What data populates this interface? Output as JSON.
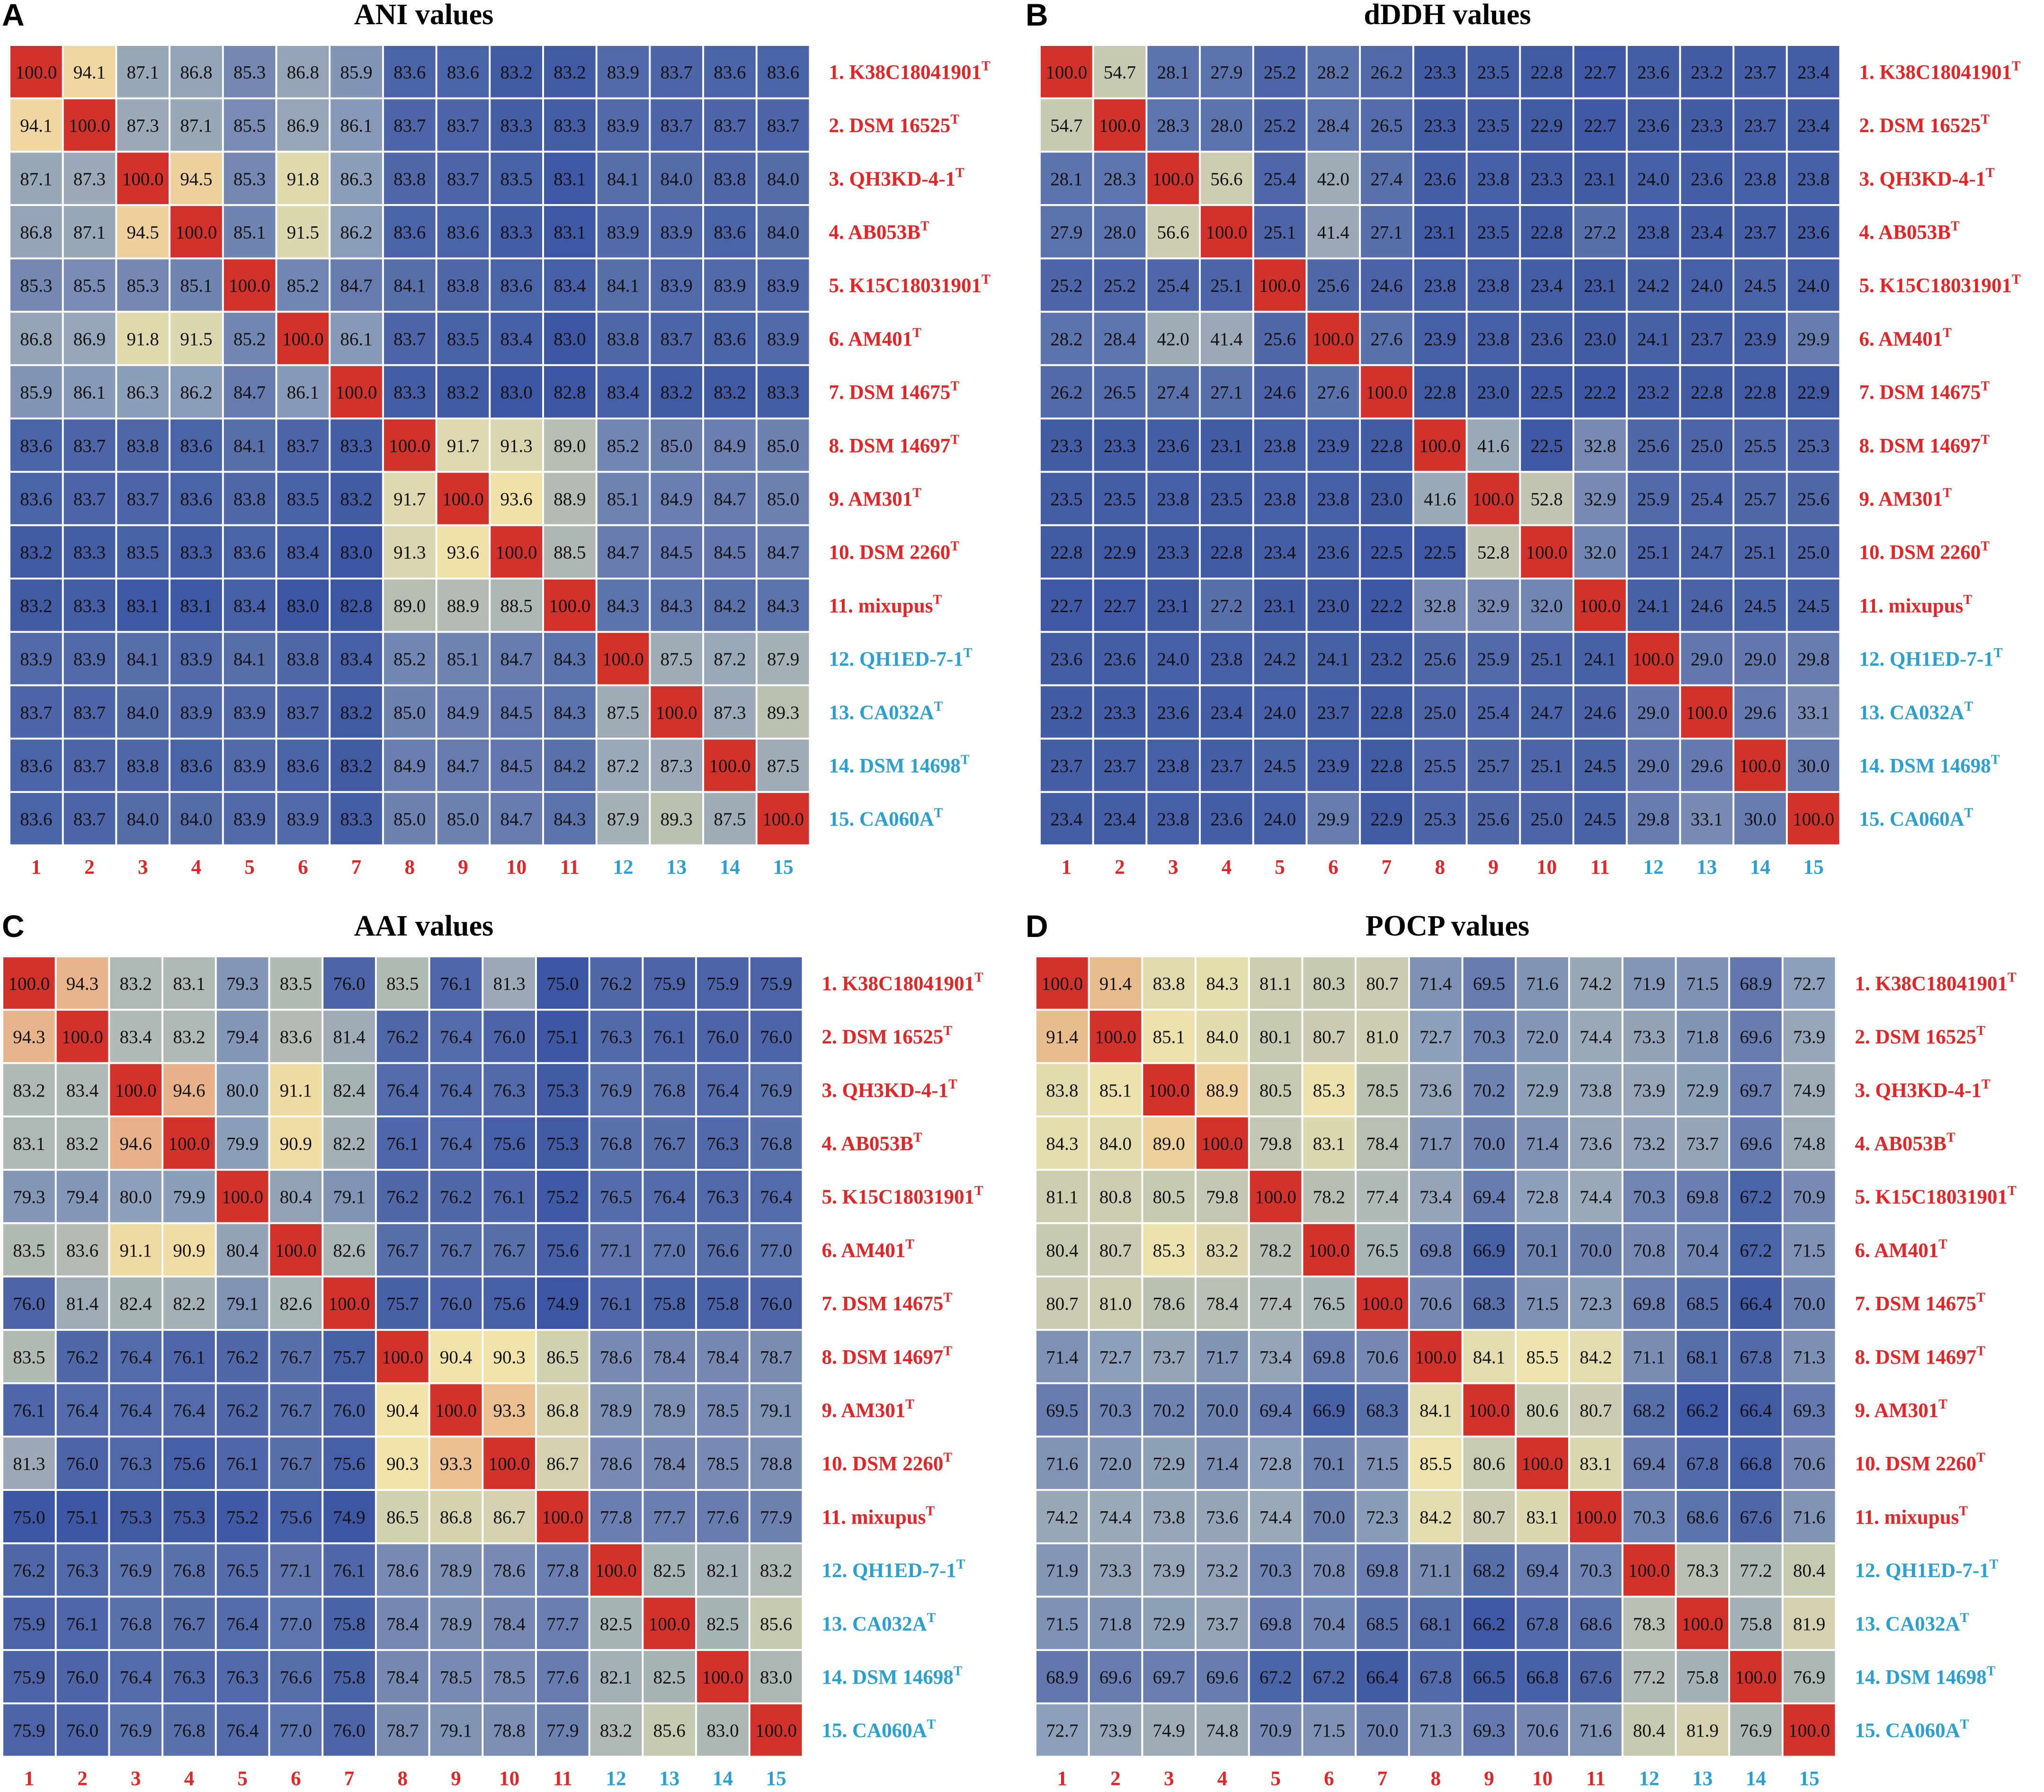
{
  "colors": {
    "low": "#3d56a3",
    "mid_low": "#8ea0b9",
    "mid": "#c2c6b1",
    "mid_high": "#f3e7ac",
    "high_mid": "#e6ac86",
    "high": "#d46348",
    "diag": "#d2322c",
    "red_label": "#e02626",
    "blue_label": "#2c9fd1"
  },
  "labels": {
    "names": [
      "1. K38C18041901",
      "2. DSM 16525",
      "3. QH3KD-4-1",
      "4. AB053B",
      "5. K15C18031901",
      "6. AM401",
      "7. DSM 14675",
      "8. DSM 14697",
      "9. AM301",
      "10. DSM 2260",
      "11. mixupus",
      "12. QH1ED-7-1",
      "13. CA032A",
      "14. DSM 14698",
      "15. CA060A"
    ],
    "superscript": "T",
    "groups": [
      "red",
      "red",
      "red",
      "red",
      "red",
      "red",
      "red",
      "red",
      "red",
      "red",
      "red",
      "blue",
      "blue",
      "blue",
      "blue"
    ],
    "ticks": [
      "1",
      "2",
      "3",
      "4",
      "5",
      "6",
      "7",
      "8",
      "9",
      "10",
      "11",
      "12",
      "13",
      "14",
      "15"
    ]
  },
  "chart_data": [
    {
      "type": "heatmap",
      "letter": "A",
      "title": "ANI values",
      "vmin": 83.0,
      "vmax": 100.0,
      "matrix": [
        [
          "100.0",
          "94.1",
          "87.1",
          "86.8",
          "85.3",
          "86.8",
          "85.9",
          "83.6",
          "83.6",
          "83.2",
          "83.2",
          "83.9",
          "83.7",
          "83.6",
          "83.6"
        ],
        [
          "94.1",
          "100.0",
          "87.3",
          "87.1",
          "85.5",
          "86.9",
          "86.1",
          "83.7",
          "83.7",
          "83.3",
          "83.3",
          "83.9",
          "83.7",
          "83.7",
          "83.7"
        ],
        [
          "87.1",
          "87.3",
          "100.0",
          "94.5",
          "85.3",
          "91.8",
          "86.3",
          "83.8",
          "83.7",
          "83.5",
          "83.1",
          "84.1",
          "84.0",
          "83.8",
          "84.0"
        ],
        [
          "86.8",
          "87.1",
          "94.5",
          "100.0",
          "85.1",
          "91.5",
          "86.2",
          "83.6",
          "83.6",
          "83.3",
          "83.1",
          "83.9",
          "83.9",
          "83.6",
          "84.0"
        ],
        [
          "85.3",
          "85.5",
          "85.3",
          "85.1",
          "100.0",
          "85.2",
          "84.7",
          "84.1",
          "83.8",
          "83.6",
          "83.4",
          "84.1",
          "83.9",
          "83.9",
          "83.9"
        ],
        [
          "86.8",
          "86.9",
          "91.8",
          "91.5",
          "85.2",
          "100.0",
          "86.1",
          "83.7",
          "83.5",
          "83.4",
          "83.0",
          "83.8",
          "83.7",
          "83.6",
          "83.9"
        ],
        [
          "85.9",
          "86.1",
          "86.3",
          "86.2",
          "84.7",
          "86.1",
          "100.0",
          "83.3",
          "83.2",
          "83.0",
          "82.8",
          "83.4",
          "83.2",
          "83.2",
          "83.3"
        ],
        [
          "83.6",
          "83.7",
          "83.8",
          "83.6",
          "84.1",
          "83.7",
          "83.3",
          "100.0",
          "91.7",
          "91.3",
          "89.0",
          "85.2",
          "85.0",
          "84.9",
          "85.0"
        ],
        [
          "83.6",
          "83.7",
          "83.7",
          "83.6",
          "83.8",
          "83.5",
          "83.2",
          "91.7",
          "100.0",
          "93.6",
          "88.9",
          "85.1",
          "84.9",
          "84.7",
          "85.0"
        ],
        [
          "83.2",
          "83.3",
          "83.5",
          "83.3",
          "83.6",
          "83.4",
          "83.0",
          "91.3",
          "93.6",
          "100.0",
          "88.5",
          "84.7",
          "84.5",
          "84.5",
          "84.7"
        ],
        [
          "83.2",
          "83.3",
          "83.1",
          "83.1",
          "83.4",
          "83.0",
          "82.8",
          "89.0",
          "88.9",
          "88.5",
          "100.0",
          "84.3",
          "84.3",
          "84.2",
          "84.3"
        ],
        [
          "83.9",
          "83.9",
          "84.1",
          "83.9",
          "84.1",
          "83.8",
          "83.4",
          "85.2",
          "85.1",
          "84.7",
          "84.3",
          "100.0",
          "87.5",
          "87.2",
          "87.9"
        ],
        [
          "83.7",
          "83.7",
          "84.0",
          "83.9",
          "83.9",
          "83.7",
          "83.2",
          "85.0",
          "84.9",
          "84.5",
          "84.3",
          "87.5",
          "100.0",
          "87.3",
          "89.3"
        ],
        [
          "83.6",
          "83.7",
          "83.8",
          "83.6",
          "83.9",
          "83.6",
          "83.2",
          "84.9",
          "84.7",
          "84.5",
          "84.2",
          "87.2",
          "87.3",
          "100.0",
          "87.5"
        ],
        [
          "83.6",
          "83.7",
          "84.0",
          "84.0",
          "83.9",
          "83.9",
          "83.3",
          "85.0",
          "85.0",
          "84.7",
          "84.3",
          "87.9",
          "89.3",
          "87.5",
          "100.0"
        ]
      ]
    },
    {
      "type": "heatmap",
      "letter": "B",
      "title": "dDDH values",
      "vmin": 22.0,
      "vmax": 100.0,
      "matrix": [
        [
          "100.0",
          "54.7",
          "28.1",
          "27.9",
          "25.2",
          "28.2",
          "26.2",
          "23.3",
          "23.5",
          "22.8",
          "22.7",
          "23.6",
          "23.2",
          "23.7",
          "23.4"
        ],
        [
          "54.7",
          "100.0",
          "28.3",
          "28.0",
          "25.2",
          "28.4",
          "26.5",
          "23.3",
          "23.5",
          "22.9",
          "22.7",
          "23.6",
          "23.3",
          "23.7",
          "23.4"
        ],
        [
          "28.1",
          "28.3",
          "100.0",
          "56.6",
          "25.4",
          "42.0",
          "27.4",
          "23.6",
          "23.8",
          "23.3",
          "23.1",
          "24.0",
          "23.6",
          "23.8",
          "23.8"
        ],
        [
          "27.9",
          "28.0",
          "56.6",
          "100.0",
          "25.1",
          "41.4",
          "27.1",
          "23.1",
          "23.5",
          "22.8",
          "27.2",
          "23.8",
          "23.4",
          "23.7",
          "23.6"
        ],
        [
          "25.2",
          "25.2",
          "25.4",
          "25.1",
          "100.0",
          "25.6",
          "24.6",
          "23.8",
          "23.8",
          "23.4",
          "23.1",
          "24.2",
          "24.0",
          "24.5",
          "24.0"
        ],
        [
          "28.2",
          "28.4",
          "42.0",
          "41.4",
          "25.6",
          "100.0",
          "27.6",
          "23.9",
          "23.8",
          "23.6",
          "23.0",
          "24.1",
          "23.7",
          "23.9",
          "29.9"
        ],
        [
          "26.2",
          "26.5",
          "27.4",
          "27.1",
          "24.6",
          "27.6",
          "100.0",
          "22.8",
          "23.0",
          "22.5",
          "22.2",
          "23.2",
          "22.8",
          "22.8",
          "22.9"
        ],
        [
          "23.3",
          "23.3",
          "23.6",
          "23.1",
          "23.8",
          "23.9",
          "22.8",
          "100.0",
          "41.6",
          "22.5",
          "32.8",
          "25.6",
          "25.0",
          "25.5",
          "25.3"
        ],
        [
          "23.5",
          "23.5",
          "23.8",
          "23.5",
          "23.8",
          "23.8",
          "23.0",
          "41.6",
          "100.0",
          "52.8",
          "32.9",
          "25.9",
          "25.4",
          "25.7",
          "25.6"
        ],
        [
          "22.8",
          "22.9",
          "23.3",
          "22.8",
          "23.4",
          "23.6",
          "22.5",
          "22.5",
          "52.8",
          "100.0",
          "32.0",
          "25.1",
          "24.7",
          "25.1",
          "25.0"
        ],
        [
          "22.7",
          "22.7",
          "23.1",
          "27.2",
          "23.1",
          "23.0",
          "22.2",
          "32.8",
          "32.9",
          "32.0",
          "100.0",
          "24.1",
          "24.6",
          "24.5",
          "24.5"
        ],
        [
          "23.6",
          "23.6",
          "24.0",
          "23.8",
          "24.2",
          "24.1",
          "23.2",
          "25.6",
          "25.9",
          "25.1",
          "24.1",
          "100.0",
          "29.0",
          "29.0",
          "29.8"
        ],
        [
          "23.2",
          "23.3",
          "23.6",
          "23.4",
          "24.0",
          "23.7",
          "22.8",
          "25.0",
          "25.4",
          "24.7",
          "24.6",
          "29.0",
          "100.0",
          "29.6",
          "33.1"
        ],
        [
          "23.7",
          "23.7",
          "23.8",
          "23.7",
          "24.5",
          "23.9",
          "22.8",
          "25.5",
          "25.7",
          "25.1",
          "24.5",
          "29.0",
          "29.6",
          "100.0",
          "30.0"
        ],
        [
          "23.4",
          "23.4",
          "23.8",
          "23.6",
          "24.0",
          "29.9",
          "22.9",
          "25.3",
          "25.6",
          "25.0",
          "24.5",
          "29.8",
          "33.1",
          "30.0",
          "100.0"
        ]
      ]
    },
    {
      "type": "heatmap",
      "letter": "C",
      "title": "AAI values",
      "vmin": 75.0,
      "vmax": 100.0,
      "matrix": [
        [
          "100.0",
          "94.3",
          "83.2",
          "83.1",
          "79.3",
          "83.5",
          "76.0",
          "83.5",
          "76.1",
          "81.3",
          "75.0",
          "76.2",
          "75.9",
          "75.9",
          "75.9"
        ],
        [
          "94.3",
          "100.0",
          "83.4",
          "83.2",
          "79.4",
          "83.6",
          "81.4",
          "76.2",
          "76.4",
          "76.0",
          "75.1",
          "76.3",
          "76.1",
          "76.0",
          "76.0"
        ],
        [
          "83.2",
          "83.4",
          "100.0",
          "94.6",
          "80.0",
          "91.1",
          "82.4",
          "76.4",
          "76.4",
          "76.3",
          "75.3",
          "76.9",
          "76.8",
          "76.4",
          "76.9"
        ],
        [
          "83.1",
          "83.2",
          "94.6",
          "100.0",
          "79.9",
          "90.9",
          "82.2",
          "76.1",
          "76.4",
          "75.6",
          "75.3",
          "76.8",
          "76.7",
          "76.3",
          "76.8"
        ],
        [
          "79.3",
          "79.4",
          "80.0",
          "79.9",
          "100.0",
          "80.4",
          "79.1",
          "76.2",
          "76.2",
          "76.1",
          "75.2",
          "76.5",
          "76.4",
          "76.3",
          "76.4"
        ],
        [
          "83.5",
          "83.6",
          "91.1",
          "90.9",
          "80.4",
          "100.0",
          "82.6",
          "76.7",
          "76.7",
          "76.7",
          "75.6",
          "77.1",
          "77.0",
          "76.6",
          "77.0"
        ],
        [
          "76.0",
          "81.4",
          "82.4",
          "82.2",
          "79.1",
          "82.6",
          "100.0",
          "75.7",
          "76.0",
          "75.6",
          "74.9",
          "76.1",
          "75.8",
          "75.8",
          "76.0"
        ],
        [
          "83.5",
          "76.2",
          "76.4",
          "76.1",
          "76.2",
          "76.7",
          "75.7",
          "100.0",
          "90.4",
          "90.3",
          "86.5",
          "78.6",
          "78.4",
          "78.4",
          "78.7"
        ],
        [
          "76.1",
          "76.4",
          "76.4",
          "76.4",
          "76.2",
          "76.7",
          "76.0",
          "90.4",
          "100.0",
          "93.3",
          "86.8",
          "78.9",
          "78.9",
          "78.5",
          "79.1"
        ],
        [
          "81.3",
          "76.0",
          "76.3",
          "75.6",
          "76.1",
          "76.7",
          "75.6",
          "90.3",
          "93.3",
          "100.0",
          "86.7",
          "78.6",
          "78.4",
          "78.5",
          "78.8"
        ],
        [
          "75.0",
          "75.1",
          "75.3",
          "75.3",
          "75.2",
          "75.6",
          "74.9",
          "86.5",
          "86.8",
          "86.7",
          "100.0",
          "77.8",
          "77.7",
          "77.6",
          "77.9"
        ],
        [
          "76.2",
          "76.3",
          "76.9",
          "76.8",
          "76.5",
          "77.1",
          "76.1",
          "78.6",
          "78.9",
          "78.6",
          "77.8",
          "100.0",
          "82.5",
          "82.1",
          "83.2"
        ],
        [
          "75.9",
          "76.1",
          "76.8",
          "76.7",
          "76.4",
          "77.0",
          "75.8",
          "78.4",
          "78.9",
          "78.4",
          "77.7",
          "82.5",
          "100.0",
          "82.5",
          "85.6"
        ],
        [
          "75.9",
          "76.0",
          "76.4",
          "76.3",
          "76.3",
          "76.6",
          "75.8",
          "78.4",
          "78.5",
          "78.5",
          "77.6",
          "82.1",
          "82.5",
          "100.0",
          "83.0"
        ],
        [
          "75.9",
          "76.0",
          "76.9",
          "76.8",
          "76.4",
          "77.0",
          "76.0",
          "78.7",
          "79.1",
          "78.8",
          "77.9",
          "83.2",
          "85.6",
          "83.0",
          "100.0"
        ]
      ]
    },
    {
      "type": "heatmap",
      "letter": "D",
      "title": "POCP values",
      "vmin": 66.0,
      "vmax": 100.0,
      "matrix": [
        [
          "100.0",
          "91.4",
          "83.8",
          "84.3",
          "81.1",
          "80.3",
          "80.7",
          "71.4",
          "69.5",
          "71.6",
          "74.2",
          "71.9",
          "71.5",
          "68.9",
          "72.7"
        ],
        [
          "91.4",
          "100.0",
          "85.1",
          "84.0",
          "80.1",
          "80.7",
          "81.0",
          "72.7",
          "70.3",
          "72.0",
          "74.4",
          "73.3",
          "71.8",
          "69.6",
          "73.9"
        ],
        [
          "83.8",
          "85.1",
          "100.0",
          "88.9",
          "80.5",
          "85.3",
          "78.5",
          "73.6",
          "70.2",
          "72.9",
          "73.8",
          "73.9",
          "72.9",
          "69.7",
          "74.9"
        ],
        [
          "84.3",
          "84.0",
          "89.0",
          "100.0",
          "79.8",
          "83.1",
          "78.4",
          "71.7",
          "70.0",
          "71.4",
          "73.6",
          "73.2",
          "73.7",
          "69.6",
          "74.8"
        ],
        [
          "81.1",
          "80.8",
          "80.5",
          "79.8",
          "100.0",
          "78.2",
          "77.4",
          "73.4",
          "69.4",
          "72.8",
          "74.4",
          "70.3",
          "69.8",
          "67.2",
          "70.9"
        ],
        [
          "80.4",
          "80.7",
          "85.3",
          "83.2",
          "78.2",
          "100.0",
          "76.5",
          "69.8",
          "66.9",
          "70.1",
          "70.0",
          "70.8",
          "70.4",
          "67.2",
          "71.5"
        ],
        [
          "80.7",
          "81.0",
          "78.6",
          "78.4",
          "77.4",
          "76.5",
          "100.0",
          "70.6",
          "68.3",
          "71.5",
          "72.3",
          "69.8",
          "68.5",
          "66.4",
          "70.0"
        ],
        [
          "71.4",
          "72.7",
          "73.7",
          "71.7",
          "73.4",
          "69.8",
          "70.6",
          "100.0",
          "84.1",
          "85.5",
          "84.2",
          "71.1",
          "68.1",
          "67.8",
          "71.3"
        ],
        [
          "69.5",
          "70.3",
          "70.2",
          "70.0",
          "69.4",
          "66.9",
          "68.3",
          "84.1",
          "100.0",
          "80.6",
          "80.7",
          "68.2",
          "66.2",
          "66.4",
          "69.3"
        ],
        [
          "71.6",
          "72.0",
          "72.9",
          "71.4",
          "72.8",
          "70.1",
          "71.5",
          "85.5",
          "80.6",
          "100.0",
          "83.1",
          "69.4",
          "67.8",
          "66.8",
          "70.6"
        ],
        [
          "74.2",
          "74.4",
          "73.8",
          "73.6",
          "74.4",
          "70.0",
          "72.3",
          "84.2",
          "80.7",
          "83.1",
          "100.0",
          "70.3",
          "68.6",
          "67.6",
          "71.6"
        ],
        [
          "71.9",
          "73.3",
          "73.9",
          "73.2",
          "70.3",
          "70.8",
          "69.8",
          "71.1",
          "68.2",
          "69.4",
          "70.3",
          "100.0",
          "78.3",
          "77.2",
          "80.4"
        ],
        [
          "71.5",
          "71.8",
          "72.9",
          "73.7",
          "69.8",
          "70.4",
          "68.5",
          "68.1",
          "66.2",
          "67.8",
          "68.6",
          "78.3",
          "100.0",
          "75.8",
          "81.9"
        ],
        [
          "68.9",
          "69.6",
          "69.7",
          "69.6",
          "67.2",
          "67.2",
          "66.4",
          "67.8",
          "66.5",
          "66.8",
          "67.6",
          "77.2",
          "75.8",
          "100.0",
          "76.9"
        ],
        [
          "72.7",
          "73.9",
          "74.9",
          "74.8",
          "70.9",
          "71.5",
          "70.0",
          "71.3",
          "69.3",
          "70.6",
          "71.6",
          "80.4",
          "81.9",
          "76.9",
          "100.0"
        ]
      ]
    }
  ]
}
